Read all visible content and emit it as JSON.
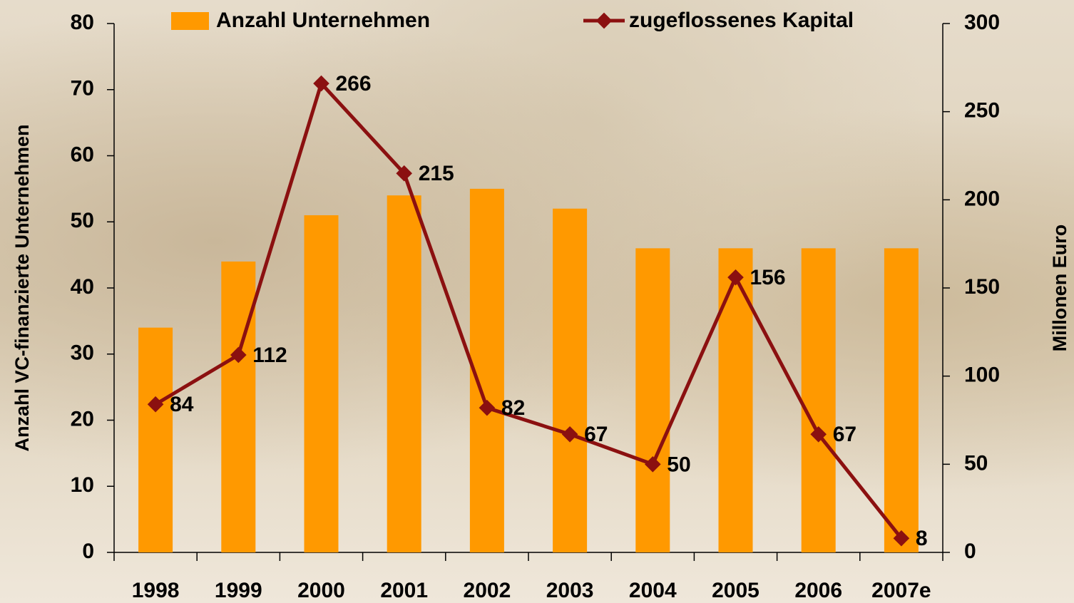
{
  "chart_data": {
    "type": "bar",
    "categories": [
      "1998",
      "1999",
      "2000",
      "2001",
      "2002",
      "2003",
      "2004",
      "2005",
      "2006",
      "2007e"
    ],
    "series": [
      {
        "name": "Anzahl Unternehmen",
        "type": "bar",
        "color": "#ff9900",
        "values": [
          34,
          44,
          51,
          54,
          55,
          52,
          46,
          46,
          46,
          46
        ]
      },
      {
        "name": "zugeflossenes Kapital",
        "type": "line",
        "axis": "y2",
        "color": "#8b1010",
        "values": [
          84,
          112,
          266,
          215,
          82,
          67,
          50,
          156,
          67,
          8
        ]
      }
    ],
    "ylabel": "Anzahl VC-finanzierte Unternehmen",
    "y2label": "Millonen Euro",
    "ylim": [
      0,
      80
    ],
    "yticks": [
      0,
      10,
      20,
      30,
      40,
      50,
      60,
      70,
      80
    ],
    "y2lim": [
      0,
      300
    ],
    "y2ticks": [
      0,
      50,
      100,
      150,
      200,
      250,
      300
    ],
    "legend": "top"
  }
}
